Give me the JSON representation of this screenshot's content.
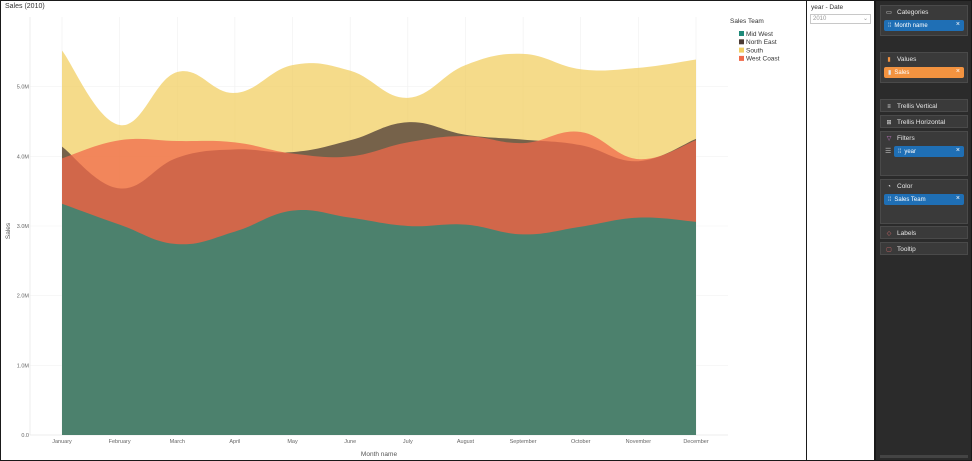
{
  "chart_data": {
    "type": "area",
    "title": "Sales (2010)",
    "xlabel": "Month name",
    "ylabel": "Sales",
    "categories": [
      "January",
      "February",
      "March",
      "April",
      "May",
      "June",
      "July",
      "August",
      "September",
      "October",
      "November",
      "December"
    ],
    "yticks": [
      "0.0",
      "1.0M",
      "2.0M",
      "3.0M",
      "4.0M",
      "5.0M"
    ],
    "ylim": [
      0,
      6000000
    ],
    "grid": true,
    "legend": {
      "title": "Sales Team",
      "placement": "right"
    },
    "series": [
      {
        "name": "Mid West",
        "color": "#1f8a7a",
        "values": [
          3320000,
          3020000,
          2740000,
          2920000,
          3220000,
          3120000,
          3000000,
          3020000,
          2880000,
          2990000,
          3120000,
          3060000
        ]
      },
      {
        "name": "North East",
        "color": "#4b3a34",
        "values": [
          4140000,
          3540000,
          3980000,
          4100000,
          4060000,
          4230000,
          4490000,
          4310000,
          4240000,
          4160000,
          3930000,
          4250000
        ]
      },
      {
        "name": "South",
        "color": "#f2cf63",
        "values": [
          5520000,
          4450000,
          5210000,
          4910000,
          5310000,
          5230000,
          4840000,
          5310000,
          5470000,
          5250000,
          5270000,
          5390000
        ]
      },
      {
        "name": "West Coast",
        "color": "#f06a4b",
        "values": [
          3970000,
          4230000,
          4220000,
          4200000,
          4040000,
          4000000,
          4200000,
          4290000,
          4190000,
          4350000,
          3960000,
          4230000
        ]
      }
    ]
  },
  "filter": {
    "title": "year - Date",
    "selected": "2010"
  },
  "wells": {
    "categories": {
      "title": "Categories",
      "field": "Month name",
      "icon": "category-icon"
    },
    "values": {
      "title": "Values",
      "field": "Sales",
      "icon": "bar-chart-icon"
    },
    "trellis_vertical": {
      "title": "Trellis Vertical",
      "icon": "trellis-vertical-icon"
    },
    "trellis_horizontal": {
      "title": "Trellis Horizontal",
      "icon": "trellis-horizontal-icon"
    },
    "filters": {
      "title": "Filters",
      "field": "year",
      "icon": "filter-icon"
    },
    "color": {
      "title": "Color",
      "field": "Sales Team",
      "icon": "palette-icon"
    },
    "labels": {
      "title": "Labels",
      "icon": "label-icon"
    },
    "tooltip": {
      "title": "Tooltip",
      "icon": "tooltip-icon"
    }
  }
}
